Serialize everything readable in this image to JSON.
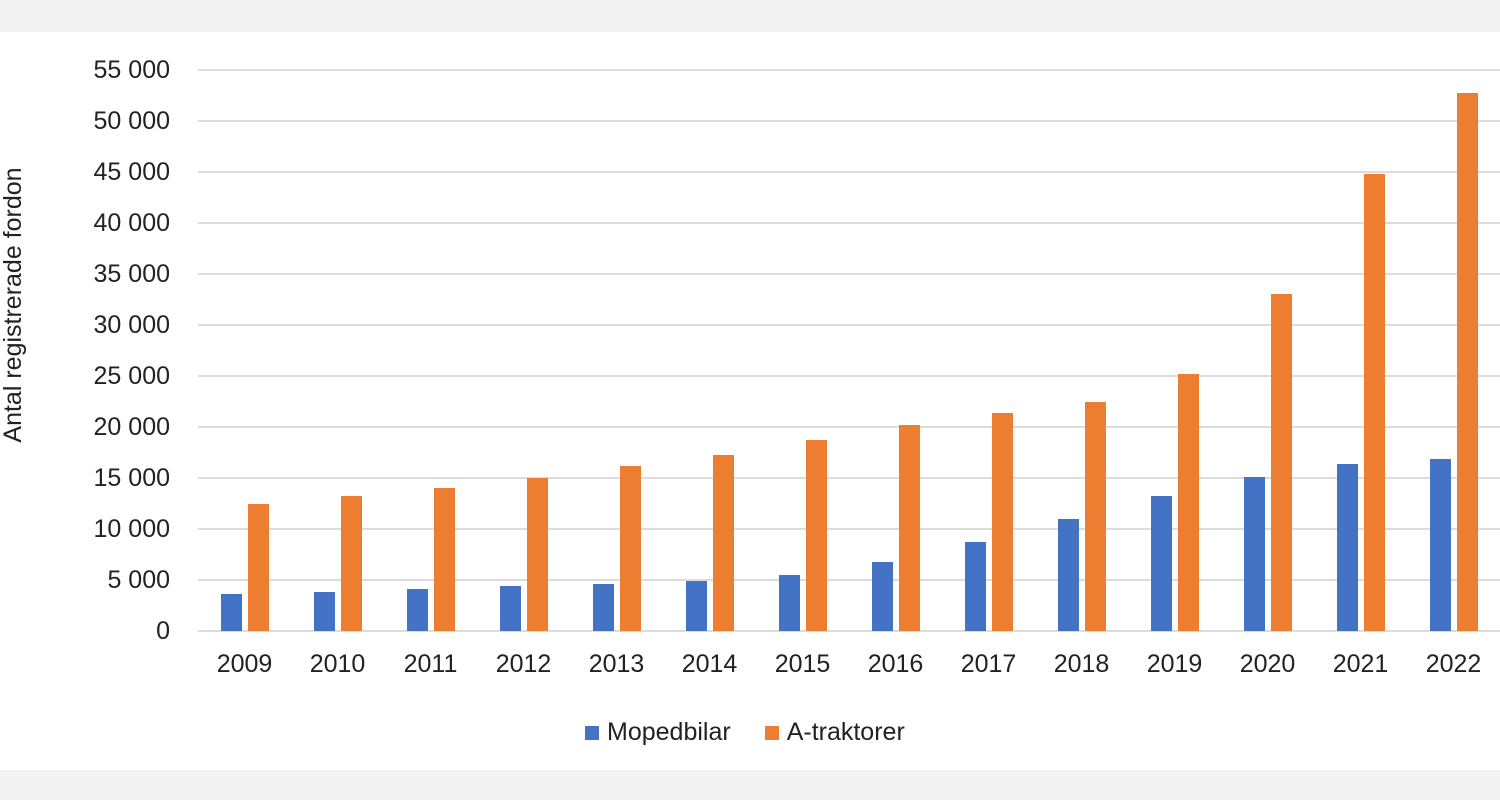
{
  "chart_data": {
    "type": "bar",
    "title": "",
    "xlabel": "",
    "ylabel": "Antal registrerade fordon",
    "ylim": [
      0,
      55000
    ],
    "yticks": [
      "0",
      "5 000",
      "10 000",
      "15 000",
      "20 000",
      "25 000",
      "30 000",
      "35 000",
      "40 000",
      "45 000",
      "50 000",
      "55 000"
    ],
    "grid": true,
    "legend_position": "bottom",
    "categories": [
      "2009",
      "2010",
      "2011",
      "2012",
      "2013",
      "2014",
      "2015",
      "2016",
      "2017",
      "2018",
      "2019",
      "2020",
      "2021",
      "2022"
    ],
    "series": [
      {
        "name": "Mopedbilar",
        "color": "#4472c4",
        "values": [
          3600,
          3800,
          4100,
          4400,
          4600,
          4900,
          5500,
          6800,
          8700,
          11000,
          13200,
          15100,
          16400,
          16900
        ]
      },
      {
        "name": "A-traktorer",
        "color": "#ed7d31",
        "values": [
          12500,
          13200,
          14000,
          15000,
          16200,
          17300,
          18700,
          20200,
          21400,
          22500,
          25200,
          33000,
          44800,
          52700
        ]
      }
    ]
  }
}
